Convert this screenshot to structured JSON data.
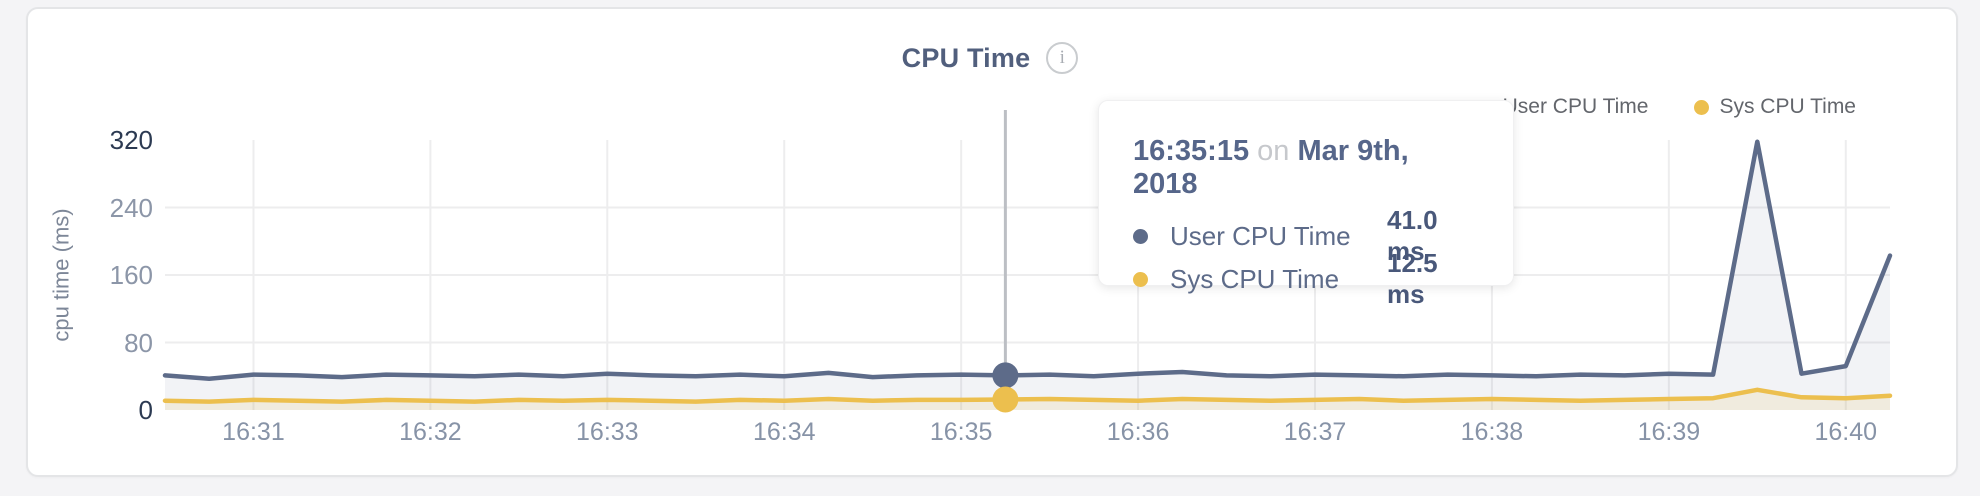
{
  "header": {
    "title": "CPU Time"
  },
  "colors": {
    "page_bg": "#f4f4f6",
    "card_bg": "#ffffff",
    "title": "#515f7d",
    "grid": "#ededee",
    "crosshair": "#bcbfc4",
    "axis_tick": "#8c96a8",
    "axis_tick_emphasis": "#2c3a52",
    "x_tick": "#8793a7"
  },
  "tooltip": {
    "time": "16:35:15",
    "separator": "on",
    "date": "Mar 9th, 2018",
    "values": [
      "41.0 ms",
      "12.5 ms"
    ]
  },
  "chart_data": {
    "type": "area",
    "title": "CPU Time",
    "xlabel": "",
    "ylabel": "cpu time (ms)",
    "ylim": [
      0,
      320
    ],
    "yticks": [
      0,
      80,
      160,
      240,
      320
    ],
    "ytick_emphasis": [
      0,
      320
    ],
    "xticks": [
      "16:31",
      "16:32",
      "16:33",
      "16:34",
      "16:35",
      "16:36",
      "16:37",
      "16:38",
      "16:39",
      "16:40"
    ],
    "x_start_time": "16:30:30",
    "sample_interval_s": 15,
    "grid": true,
    "legend_position": "top-right",
    "series": [
      {
        "name": "User CPU Time",
        "color": "#5d6b89",
        "fill": "rgba(93,107,137,0.08)",
        "values": [
          41,
          37,
          42,
          41,
          39,
          42,
          41,
          40,
          42,
          40,
          43,
          41,
          40,
          42,
          40,
          44,
          39,
          41,
          42,
          41,
          42,
          40,
          43,
          45,
          41,
          40,
          42,
          41,
          40,
          42,
          41,
          40,
          42,
          41,
          43,
          42,
          318,
          43,
          52,
          183
        ]
      },
      {
        "name": "Sys CPU Time",
        "color": "#ecbf4e",
        "fill": "rgba(236,191,78,0.14)",
        "values": [
          11,
          10,
          12,
          11,
          10,
          12,
          11,
          10,
          12,
          11,
          12,
          11,
          10,
          12,
          11,
          13,
          11,
          12,
          12,
          12.5,
          13,
          12,
          11,
          13,
          12,
          11,
          12,
          13,
          11,
          12,
          13,
          12,
          11,
          12,
          13,
          14,
          24,
          15,
          14,
          17
        ]
      }
    ],
    "highlight": {
      "index": 19,
      "time": "16:35:15",
      "date": "Mar 9th, 2018",
      "values_ms": [
        41.0,
        12.5
      ]
    }
  }
}
